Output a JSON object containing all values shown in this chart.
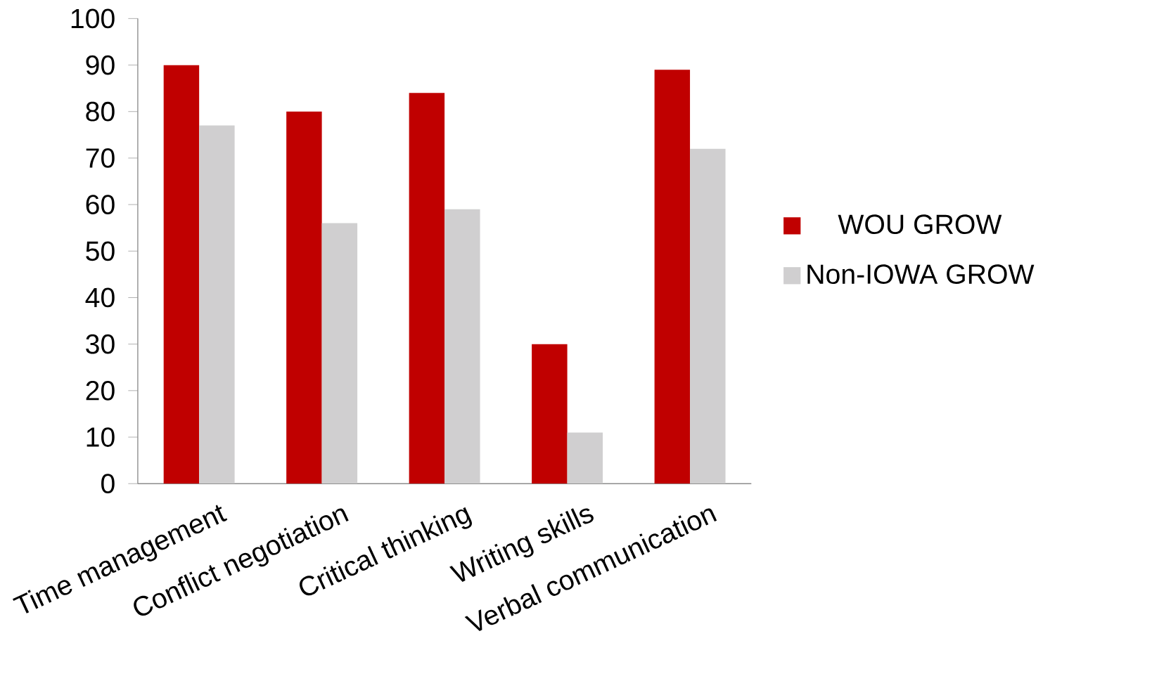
{
  "chart_data": {
    "type": "bar",
    "categories": [
      "Time management",
      "Conflict negotiation",
      "Critical thinking",
      "Writing skills",
      "Verbal communication"
    ],
    "series": [
      {
        "name": "WOU GROW",
        "color": "#c00000",
        "values": [
          90,
          80,
          84,
          30,
          89
        ]
      },
      {
        "name": "Non-IOWA GROW",
        "color": "#d0cfd0",
        "values": [
          77,
          56,
          59,
          11,
          72
        ]
      }
    ],
    "ylim": [
      0,
      100
    ],
    "yticks": [
      0,
      10,
      20,
      30,
      40,
      50,
      60,
      70,
      80,
      90,
      100
    ],
    "grid": false,
    "legend": "right"
  }
}
